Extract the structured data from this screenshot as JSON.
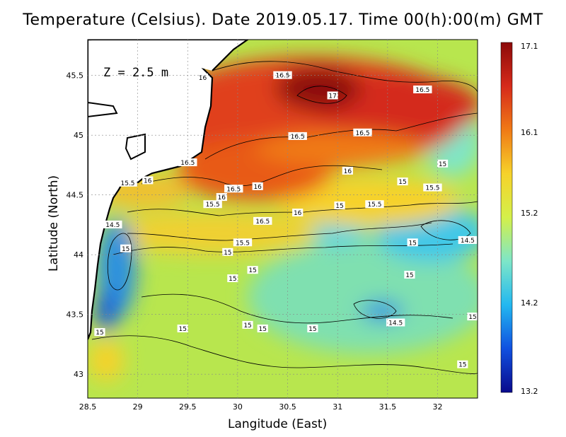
{
  "title": "Temperature (Celsius). Date 2019.05.17. Time 00(h):00(m) GMT",
  "depth_label": "Z = 2.5 m",
  "x_axis": {
    "label": "Langitude (East)",
    "range": [
      28.5,
      32.4
    ],
    "ticks": [
      "28.5",
      "29",
      "29.5",
      "30",
      "30.5",
      "31",
      "31.5",
      "32"
    ]
  },
  "y_axis": {
    "label": "Latitude (North)",
    "range": [
      42.8,
      45.8
    ],
    "ticks": [
      "43",
      "43.5",
      "44",
      "44.5",
      "45",
      "45.5"
    ]
  },
  "colorbar": {
    "ticks": [
      "17.1",
      "16.1",
      "15.2",
      "14.2",
      "13.2"
    ],
    "min": 13.2,
    "max": 17.1,
    "colors": [
      "#0a0a8c",
      "#1050e0",
      "#22b8f0",
      "#7ee6c8",
      "#d4f04a",
      "#f6d22a",
      "#f07a16",
      "#d62a1a",
      "#8c0a0a"
    ]
  },
  "contour_labels": [
    {
      "text": "16.5",
      "lon": 30.45,
      "lat": 45.5
    },
    {
      "text": "16",
      "lon": 29.65,
      "lat": 45.48
    },
    {
      "text": "17",
      "lon": 30.95,
      "lat": 45.33
    },
    {
      "text": "16.5",
      "lon": 31.85,
      "lat": 45.38
    },
    {
      "text": "16.5",
      "lon": 30.6,
      "lat": 44.99
    },
    {
      "text": "16.5",
      "lon": 31.25,
      "lat": 45.02
    },
    {
      "text": "16.5",
      "lon": 29.5,
      "lat": 44.77
    },
    {
      "text": "16",
      "lon": 29.1,
      "lat": 44.62
    },
    {
      "text": "15.5",
      "lon": 28.9,
      "lat": 44.6
    },
    {
      "text": "16",
      "lon": 31.1,
      "lat": 44.7
    },
    {
      "text": "15",
      "lon": 32.05,
      "lat": 44.76
    },
    {
      "text": "15",
      "lon": 31.65,
      "lat": 44.61
    },
    {
      "text": "15.5",
      "lon": 31.95,
      "lat": 44.56
    },
    {
      "text": "16.5",
      "lon": 29.96,
      "lat": 44.55
    },
    {
      "text": "16",
      "lon": 30.2,
      "lat": 44.57
    },
    {
      "text": "16",
      "lon": 29.84,
      "lat": 44.48
    },
    {
      "text": "15.5",
      "lon": 29.75,
      "lat": 44.42
    },
    {
      "text": "15",
      "lon": 31.02,
      "lat": 44.41
    },
    {
      "text": "15.5",
      "lon": 31.37,
      "lat": 44.42
    },
    {
      "text": "16",
      "lon": 30.6,
      "lat": 44.35
    },
    {
      "text": "16.5",
      "lon": 30.25,
      "lat": 44.28
    },
    {
      "text": "14.5",
      "lon": 28.75,
      "lat": 44.25
    },
    {
      "text": "15",
      "lon": 28.88,
      "lat": 44.05
    },
    {
      "text": "15.5",
      "lon": 30.05,
      "lat": 44.1
    },
    {
      "text": "15",
      "lon": 29.9,
      "lat": 44.02
    },
    {
      "text": "15",
      "lon": 31.75,
      "lat": 44.1
    },
    {
      "text": "14.5",
      "lon": 32.3,
      "lat": 44.12
    },
    {
      "text": "15",
      "lon": 30.15,
      "lat": 43.87
    },
    {
      "text": "15",
      "lon": 29.95,
      "lat": 43.8
    },
    {
      "text": "15",
      "lon": 31.72,
      "lat": 43.83
    },
    {
      "text": "14.5",
      "lon": 31.58,
      "lat": 43.43
    },
    {
      "text": "15",
      "lon": 32.35,
      "lat": 43.48
    },
    {
      "text": "15",
      "lon": 30.1,
      "lat": 43.41
    },
    {
      "text": "15",
      "lon": 30.25,
      "lat": 43.38
    },
    {
      "text": "15",
      "lon": 30.75,
      "lat": 43.38
    },
    {
      "text": "15",
      "lon": 29.45,
      "lat": 43.38
    },
    {
      "text": "15",
      "lon": 28.62,
      "lat": 43.35
    },
    {
      "text": "15",
      "lon": 32.25,
      "lat": 43.08
    }
  ]
}
